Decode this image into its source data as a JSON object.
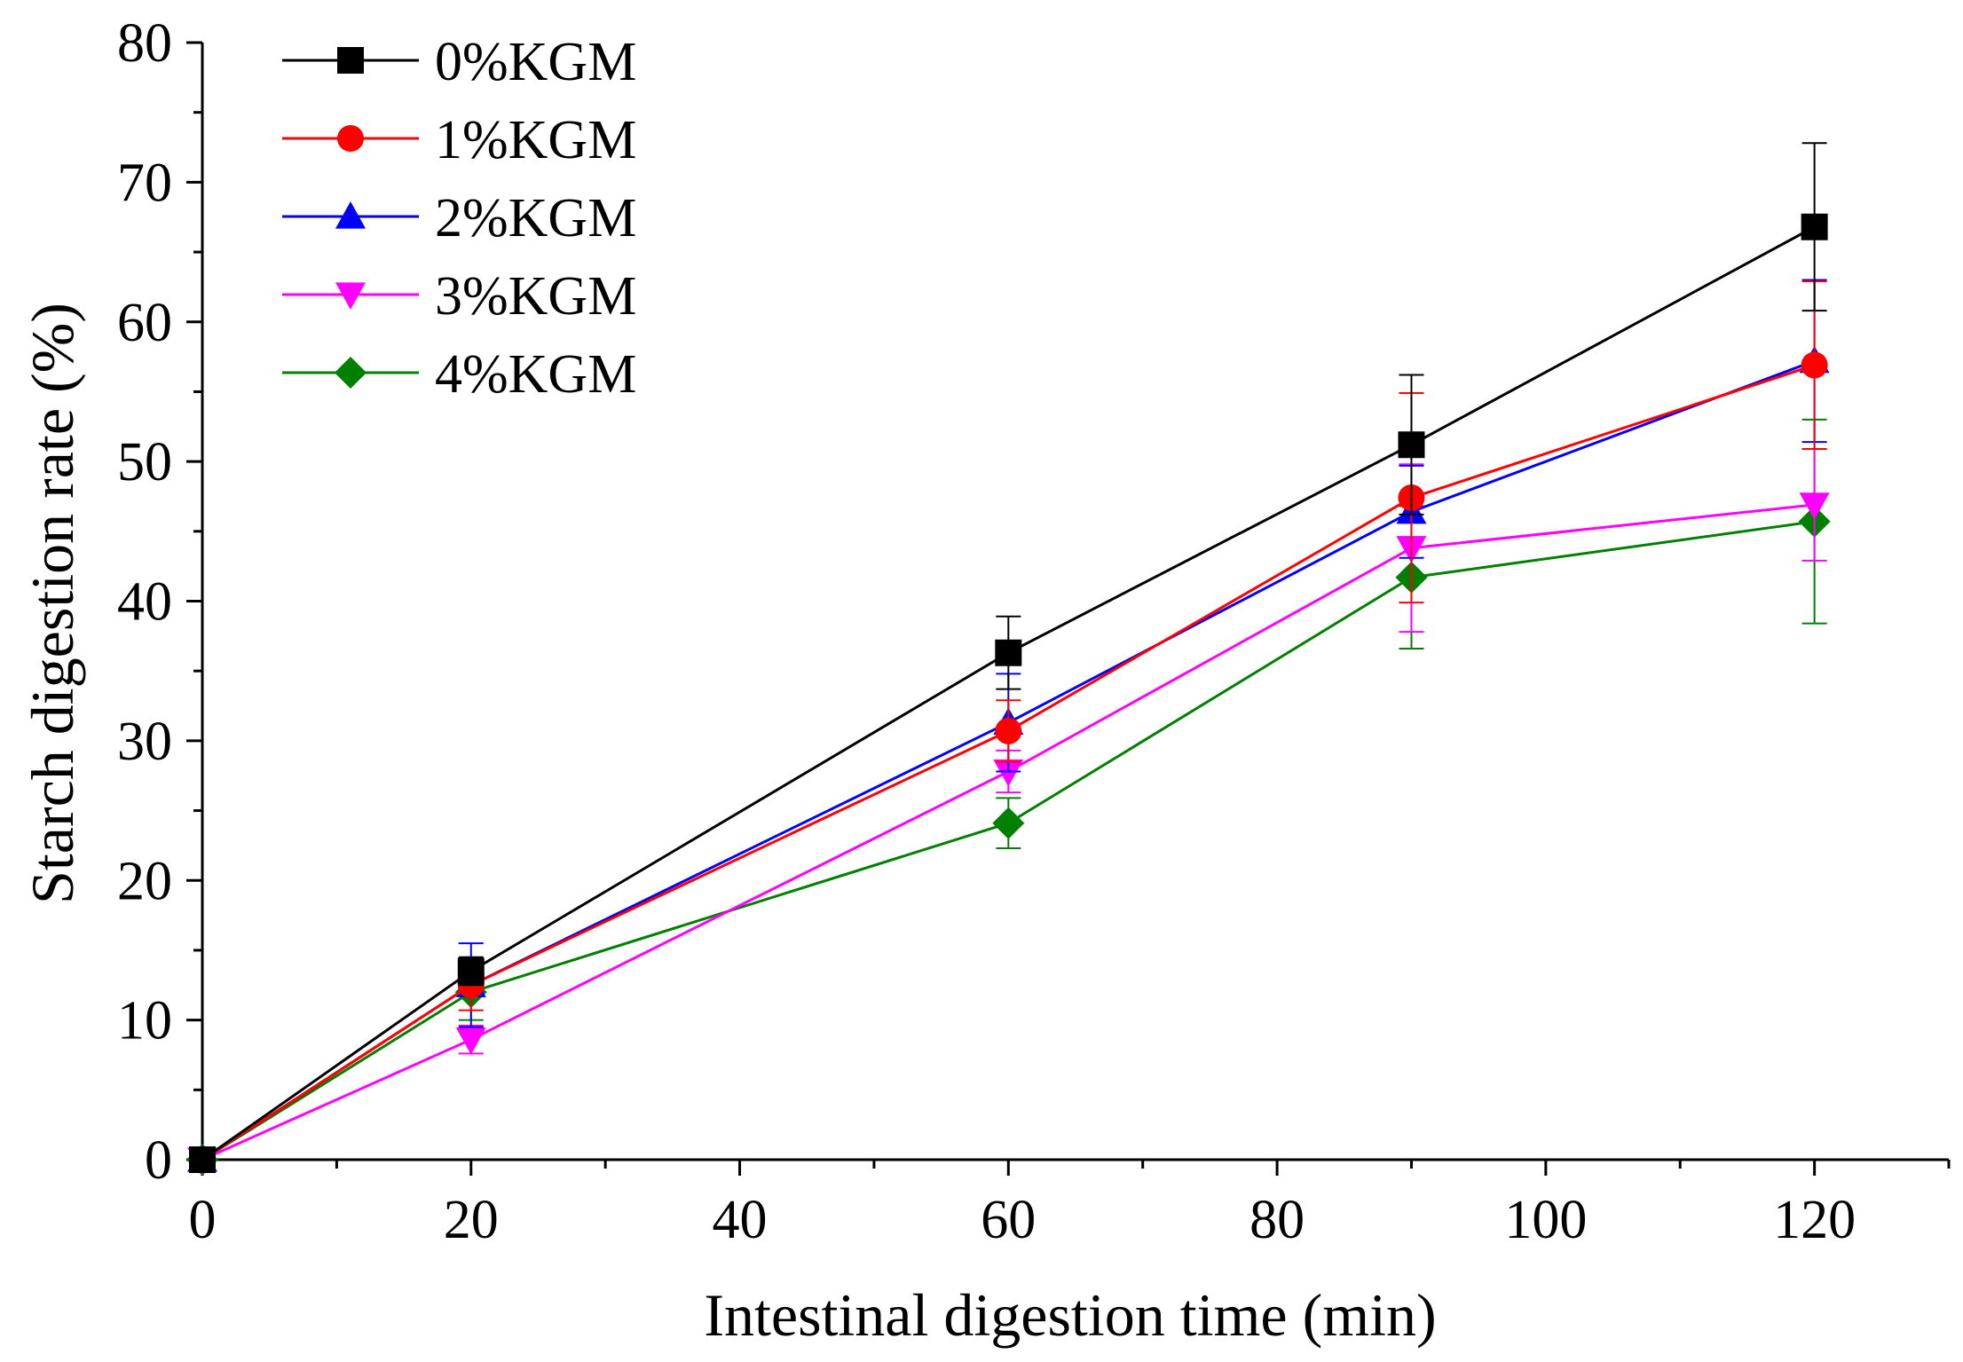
{
  "chart_data": {
    "type": "line",
    "title": "",
    "xlabel": "Intestinal digestion time (min)",
    "ylabel": "Starch digestion rate (%)",
    "xlim": [
      0,
      130
    ],
    "ylim": [
      0,
      80
    ],
    "x_ticks": [
      0,
      20,
      40,
      60,
      80,
      100,
      120
    ],
    "y_ticks": [
      0,
      10,
      20,
      30,
      40,
      50,
      60,
      70,
      80
    ],
    "x_tick_labels": [
      "0",
      "20",
      "40",
      "60",
      "80",
      "100",
      "120"
    ],
    "y_tick_labels": [
      "0",
      "10",
      "20",
      "30",
      "40",
      "50",
      "60",
      "70",
      "80"
    ],
    "x": [
      0,
      20,
      60,
      90,
      120
    ],
    "grid": false,
    "legend_position": "top-left",
    "series": [
      {
        "name": "0%KGM",
        "color": "#000000",
        "marker": "square",
        "values": [
          0,
          13.5,
          36.3,
          51.2,
          66.8
        ],
        "errors": [
          0,
          1.0,
          2.6,
          5.0,
          6.0
        ]
      },
      {
        "name": "1%KGM",
        "color": "#ff0000",
        "marker": "circle",
        "values": [
          0,
          12.5,
          30.7,
          47.4,
          56.9
        ],
        "errors": [
          0,
          1.8,
          2.2,
          7.5,
          6.0
        ]
      },
      {
        "name": "2%KGM",
        "color": "#0000ff",
        "marker": "triangle-up",
        "values": [
          0,
          12.5,
          31.3,
          46.4,
          57.2
        ],
        "errors": [
          0,
          3.0,
          3.5,
          3.3,
          5.8
        ]
      },
      {
        "name": "3%KGM",
        "color": "#ff00ff",
        "marker": "triangle-down",
        "values": [
          0,
          8.6,
          27.8,
          43.8,
          46.9
        ],
        "errors": [
          0,
          1.0,
          1.5,
          6.0,
          4.0
        ]
      },
      {
        "name": "4%KGM",
        "color": "#008000",
        "marker": "diamond",
        "values": [
          0,
          12.0,
          24.1,
          41.7,
          45.7
        ],
        "errors": [
          0,
          2.0,
          1.8,
          5.1,
          7.3
        ]
      }
    ]
  }
}
